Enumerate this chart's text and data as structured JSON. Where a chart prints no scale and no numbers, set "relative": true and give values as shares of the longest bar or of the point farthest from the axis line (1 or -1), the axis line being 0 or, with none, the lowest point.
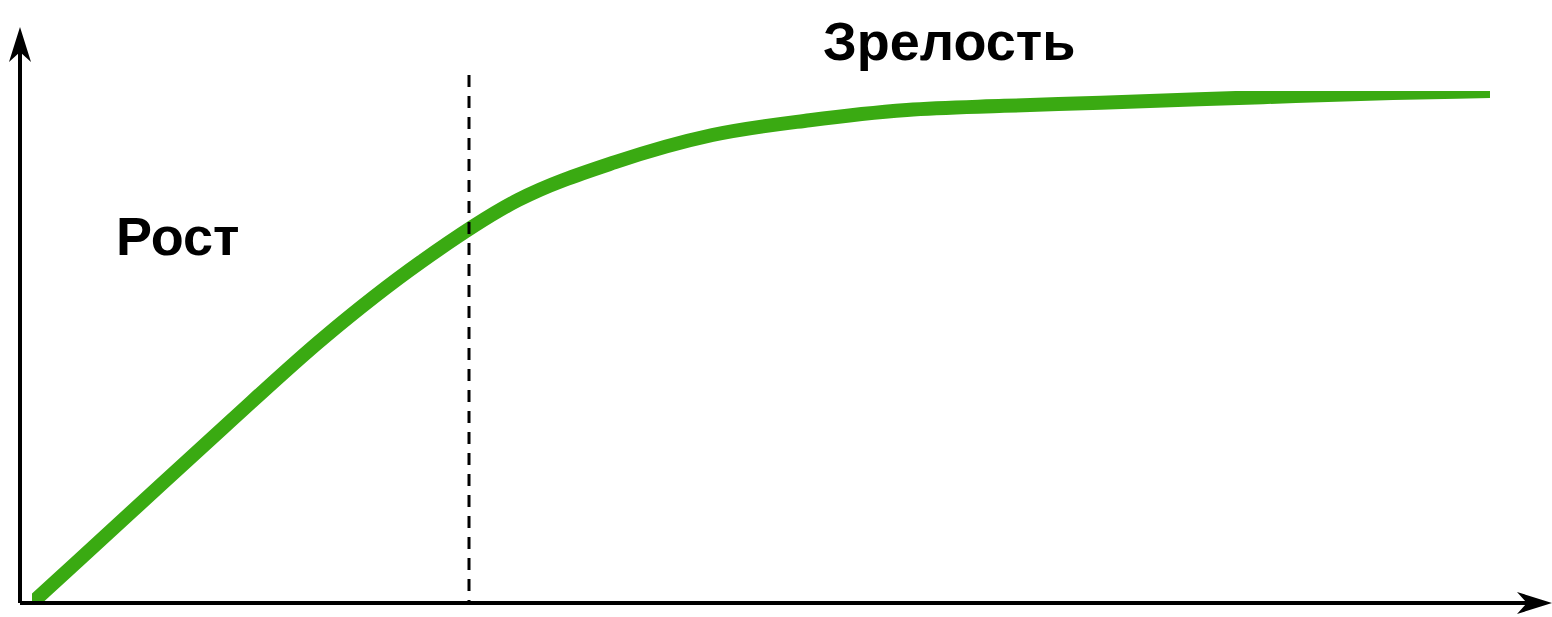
{
  "chart_data": {
    "type": "line",
    "relative": true,
    "categories": [
      null,
      null,
      null,
      null,
      null,
      null,
      null,
      null,
      null,
      null,
      null,
      null,
      null,
      null,
      null,
      null
    ],
    "series": [
      {
        "color": "#3aaa12",
        "values": [
          0,
          0.174,
          0.348,
          0.518,
          0.666,
          0.787,
          0.861,
          0.914,
          0.943,
          0.963,
          0.971,
          0.977,
          0.984,
          0.99,
          0.996,
          1
        ]
      }
    ],
    "annotations": [
      "Рост",
      "Зрелость"
    ],
    "marker": "none",
    "line_style": "solid"
  }
}
